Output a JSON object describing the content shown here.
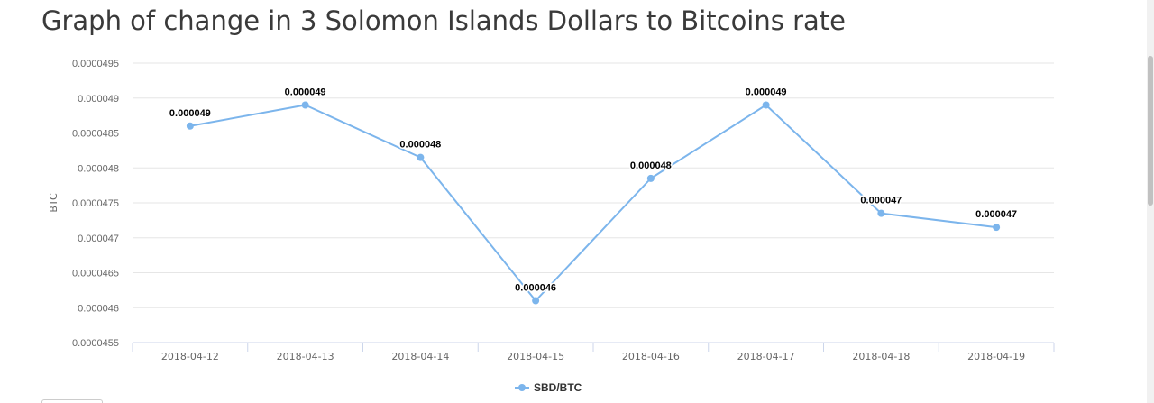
{
  "page": {
    "title": "Graph of change in 3 Solomon Islands Dollars to Bitcoins rate"
  },
  "chart_data": {
    "type": "line",
    "title": "",
    "xlabel": "",
    "ylabel": "BTC",
    "categories": [
      "2018-04-12",
      "2018-04-13",
      "2018-04-14",
      "2018-04-15",
      "2018-04-16",
      "2018-04-17",
      "2018-04-18",
      "2018-04-19"
    ],
    "series": [
      {
        "name": "SBD/BTC",
        "values": [
          4.86e-05,
          4.89e-05,
          4.815e-05,
          4.61e-05,
          4.785e-05,
          4.89e-05,
          4.735e-05,
          4.715e-05
        ],
        "data_labels": [
          "0.000049",
          "0.000049",
          "0.000048",
          "0.000046",
          "0.000048",
          "0.000049",
          "0.000047",
          "0.000047"
        ],
        "color": "#7cb5ec"
      }
    ],
    "ylim": [
      4.55e-05,
      4.95e-05
    ],
    "yticks": [
      4.55e-05,
      4.6e-05,
      4.65e-05,
      4.7e-05,
      4.75e-05,
      4.8e-05,
      4.85e-05,
      4.9e-05,
      4.95e-05
    ],
    "ytick_labels": [
      "0.0000455",
      "0.000046",
      "0.0000465",
      "0.000047",
      "0.0000475",
      "0.000048",
      "0.0000485",
      "0.000049",
      "0.0000495"
    ],
    "grid": true,
    "legend": "bottom-center",
    "grid_color": "#e6e6e6",
    "axis_color": "#ccd6eb",
    "text_color": "#666666"
  }
}
